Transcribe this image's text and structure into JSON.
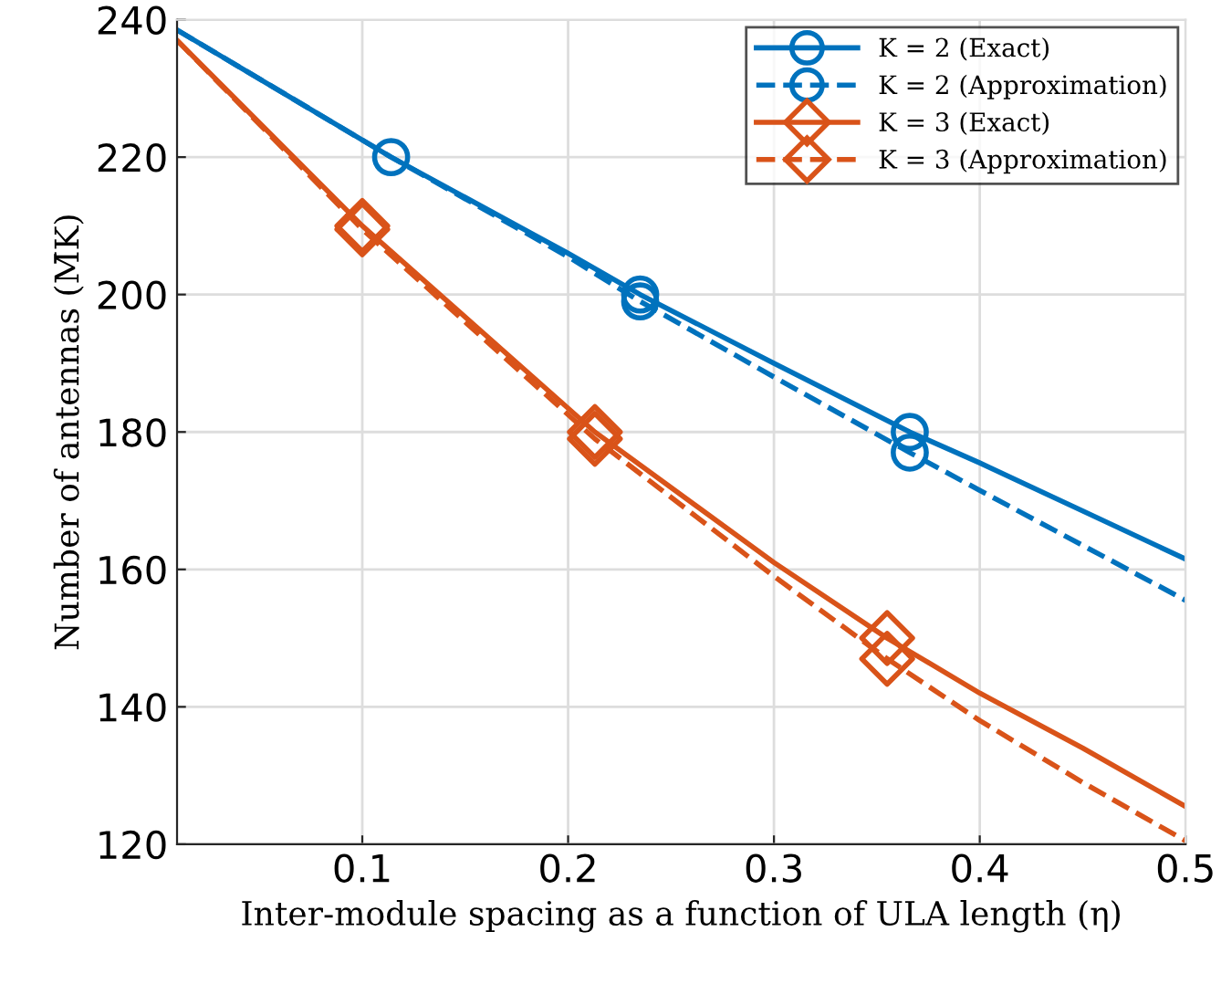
{
  "chart_data": {
    "type": "line",
    "xlabel": "Inter-module spacing as a function of ULA length (η)",
    "ylabel": "Number of antennas (M̄K)",
    "xlim": [
      0.01,
      0.5
    ],
    "ylim": [
      120,
      240
    ],
    "xticks": [
      0.1,
      0.2,
      0.3,
      0.4,
      0.5
    ],
    "yticks": [
      120,
      140,
      160,
      180,
      200,
      220,
      240
    ],
    "grid": true,
    "legend": "top right",
    "series": [
      {
        "name": "K = 2 (Exact)",
        "color": "#0072bd",
        "line_style": "solid",
        "marker": "none",
        "x": [
          0.01,
          0.1,
          0.114,
          0.2,
          0.235,
          0.3,
          0.366,
          0.4,
          0.45,
          0.5
        ],
        "values": [
          238.5,
          222.5,
          220,
          206,
          200,
          190,
          180,
          175.5,
          168.5,
          161.5
        ]
      },
      {
        "name": "K = 2 (Approximation)",
        "color": "#0072bd",
        "line_style": "dashed",
        "marker": "none",
        "x": [
          0.01,
          0.114,
          0.2,
          0.235,
          0.3,
          0.366,
          0.4,
          0.45,
          0.5
        ],
        "values": [
          238.5,
          220,
          205.5,
          199,
          188,
          177,
          171.5,
          163.5,
          155.5
        ]
      },
      {
        "name": "K = 3 (Exact)",
        "color": "#d95319",
        "line_style": "solid",
        "marker": "none",
        "x": [
          0.01,
          0.1,
          0.213,
          0.3,
          0.355,
          0.4,
          0.45,
          0.5
        ],
        "values": [
          237,
          210,
          180,
          161,
          150,
          142,
          134,
          125.5
        ]
      },
      {
        "name": "K = 3 (Approximation)",
        "color": "#d95319",
        "line_style": "dashed",
        "marker": "none",
        "x": [
          0.01,
          0.1,
          0.213,
          0.3,
          0.355,
          0.4,
          0.45,
          0.5
        ],
        "values": [
          237,
          209.5,
          179,
          159,
          147,
          138,
          129,
          120.5
        ]
      },
      {
        "type": "scatter",
        "color": "#0072bd",
        "marker": "circle",
        "x": [
          0.114,
          0.235,
          0.366
        ],
        "values": [
          220,
          200,
          180
        ]
      },
      {
        "type": "scatter",
        "color": "#0072bd",
        "marker": "circle",
        "x": [
          0.235,
          0.366
        ],
        "values": [
          199,
          177
        ]
      },
      {
        "type": "scatter",
        "color": "#d95319",
        "marker": "diamond",
        "x": [
          0.1,
          0.213,
          0.355
        ],
        "values": [
          210,
          180,
          150
        ]
      },
      {
        "type": "scatter",
        "color": "#d95319",
        "marker": "diamond",
        "x": [
          0.1,
          0.213,
          0.355
        ],
        "values": [
          209.5,
          179,
          147
        ]
      }
    ]
  }
}
